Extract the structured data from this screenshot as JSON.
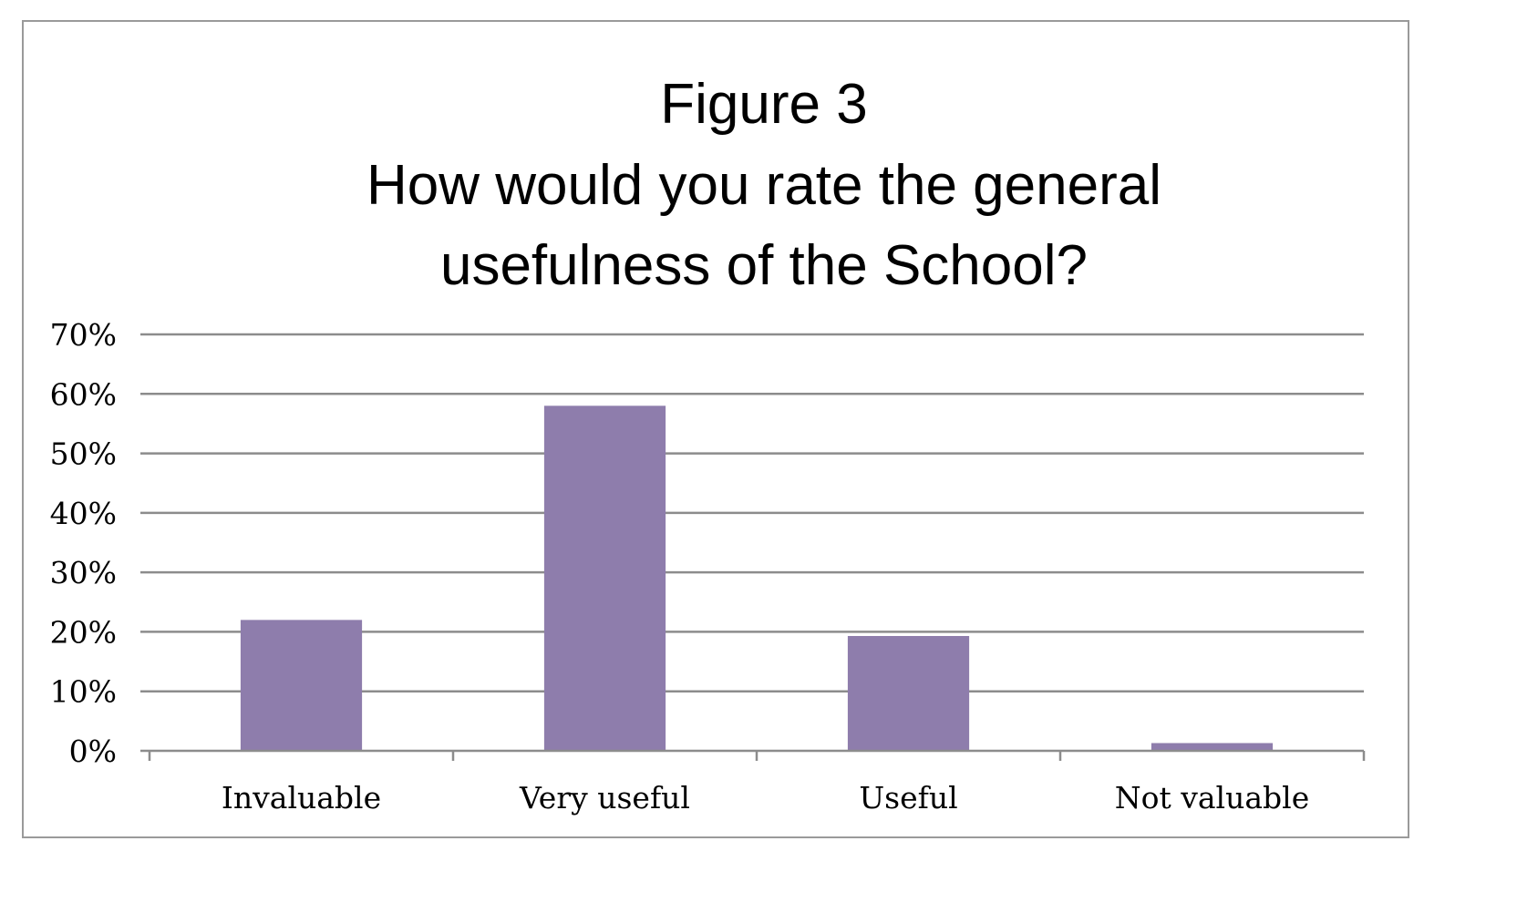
{
  "chart_data": {
    "type": "bar",
    "title_lines": [
      "Figure 3",
      "How would you rate the general",
      "usefulness of the School?"
    ],
    "categories": [
      "Invaluable",
      "Very useful",
      "Useful",
      "Not valuable"
    ],
    "series": [
      {
        "values": [
          22,
          58,
          19.3,
          1.3
        ],
        "color": "#8e7dac"
      }
    ],
    "xlabel": "",
    "ylabel": "",
    "ylim": [
      0,
      70
    ],
    "yticks": [
      "0%",
      "10%",
      "20%",
      "30%",
      "40%",
      "50%",
      "60%",
      "70%"
    ],
    "grid": true,
    "legend": "none",
    "colors": {
      "bar": "#8e7dac",
      "grid": "#8c8c8c",
      "frame": "#9a9a9a"
    }
  }
}
